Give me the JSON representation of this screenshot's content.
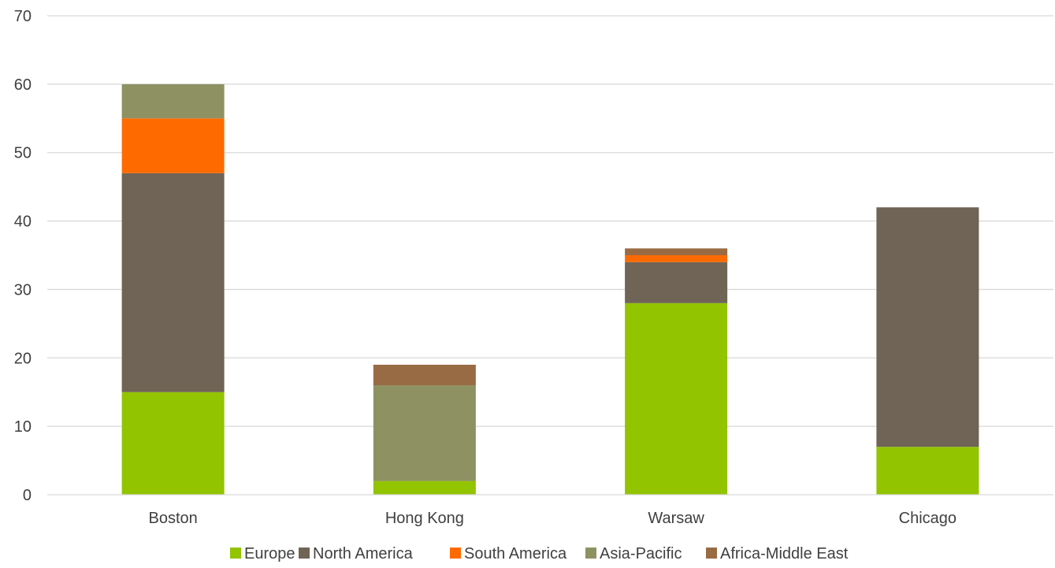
{
  "chart_data": {
    "type": "bar",
    "stacked": true,
    "categories": [
      "Boston",
      "Hong Kong",
      "Warsaw",
      "Chicago"
    ],
    "series": [
      {
        "name": "Europe",
        "color": "#92c400",
        "values": [
          15,
          2,
          28,
          7
        ]
      },
      {
        "name": "North America",
        "color": "#6f6455",
        "values": [
          32,
          0,
          6,
          35
        ]
      },
      {
        "name": "South America",
        "color": "#ff6a00",
        "values": [
          8,
          0,
          1,
          0
        ]
      },
      {
        "name": "Asia-Pacific",
        "color": "#8e9262",
        "values": [
          5,
          14,
          0,
          0
        ]
      },
      {
        "name": "Africa-Middle East",
        "color": "#996b45",
        "values": [
          0,
          3,
          1,
          0
        ]
      }
    ],
    "y_ticks": [
      "0",
      "10",
      "20",
      "30",
      "40",
      "50",
      "60",
      "70"
    ],
    "ylim": [
      0,
      70
    ],
    "grid": true,
    "legend_position": "bottom"
  }
}
